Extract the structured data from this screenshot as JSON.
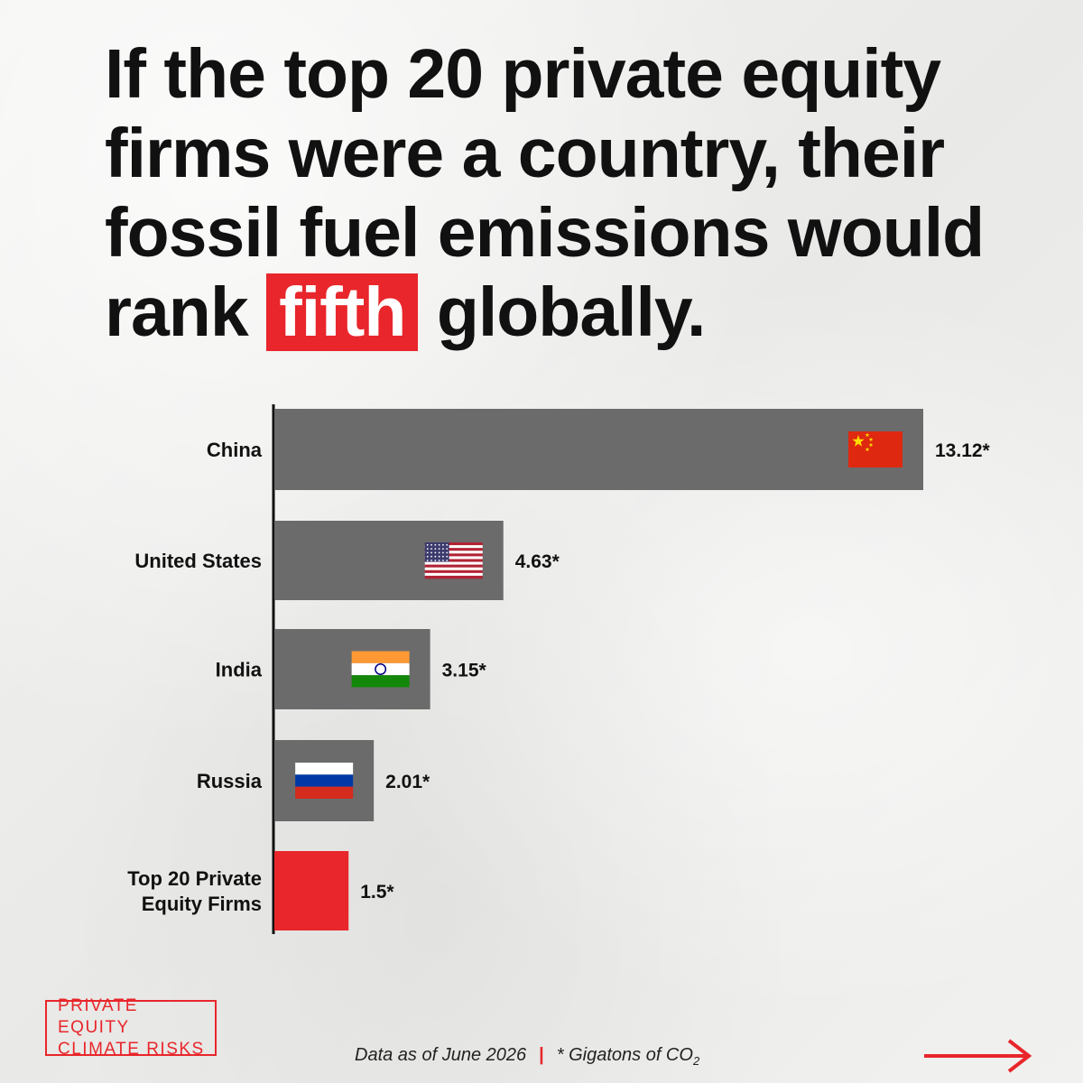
{
  "headline": {
    "before": "If the top 20 private equity firms were a country, their fossil fuel emissions would rank",
    "highlight": "fifth",
    "after": "globally."
  },
  "chart_data": {
    "type": "bar",
    "orientation": "horizontal",
    "categories": [
      "China",
      "United States",
      "India",
      "Russia",
      "Top 20 Private Equity Firms"
    ],
    "values": [
      13.12,
      4.63,
      3.15,
      2.01,
      1.5
    ],
    "value_labels": [
      "13.12*",
      "4.63*",
      "3.15*",
      "2.01*",
      "1.5*"
    ],
    "flags": [
      "china-flag",
      "usa-flag",
      "india-flag",
      "russia-flag",
      ""
    ],
    "bar_colors": [
      "#6b6b6b",
      "#6b6b6b",
      "#6b6b6b",
      "#6b6b6b",
      "#e8262b"
    ],
    "highlight_index": 4,
    "xlim": [
      0,
      13.12
    ],
    "grid": false
  },
  "footer": {
    "logo_line1": "PRIVATE EQUITY",
    "logo_line2": "CLIMATE RISKS",
    "date_note": "Data as of June 2026",
    "separator": "|",
    "unit_note": "* Gigatons of CO",
    "unit_subscript": "2"
  },
  "colors": {
    "accent": "#e8262b",
    "bar": "#6b6b6b",
    "text": "#111111"
  },
  "icons": {
    "next": "arrow-right-icon"
  }
}
